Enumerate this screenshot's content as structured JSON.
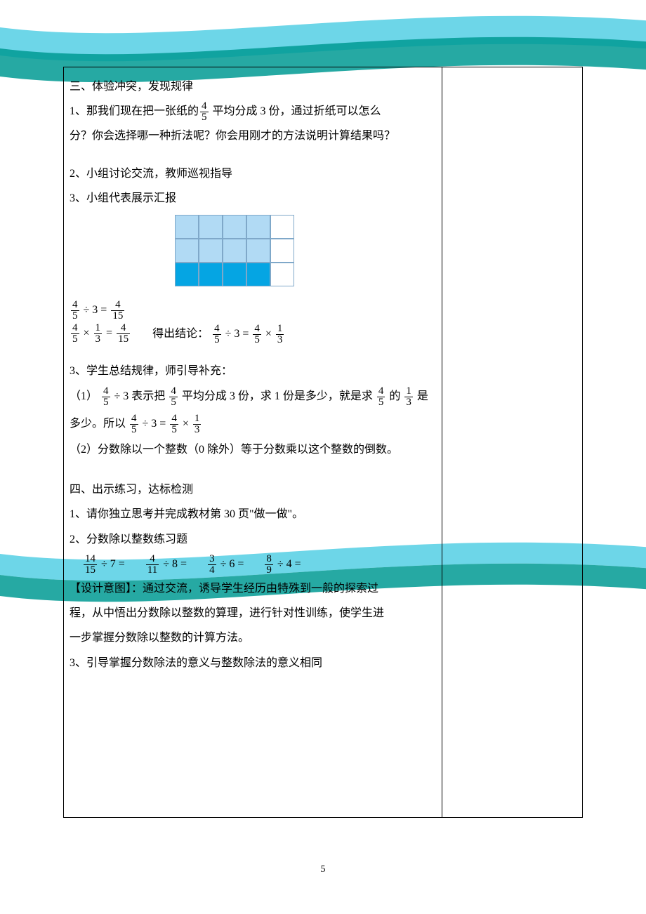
{
  "page_number": "5",
  "colors": {
    "swoosh_dark": "#009a93",
    "swoosh_light": "#5dd2e6",
    "grid_border": "#7fa8c9",
    "cell_light": "#b1daf4",
    "cell_dark": "#05a5e3",
    "cell_blank": "#ffffff"
  },
  "grid_diagram": {
    "rows": 3,
    "cols": 5,
    "fills": [
      [
        "b1daf4",
        "b1daf4",
        "b1daf4",
        "b1daf4",
        "ffffff"
      ],
      [
        "b1daf4",
        "b1daf4",
        "b1daf4",
        "b1daf4",
        "ffffff"
      ],
      [
        "05a5e3",
        "05a5e3",
        "05a5e3",
        "05a5e3",
        "ffffff"
      ]
    ]
  },
  "section3": {
    "heading": "三、体验冲突，发现规律",
    "p1_a": "1、那我们现在把一张纸的",
    "p1_frac_n": "4",
    "p1_frac_d": "5",
    "p1_b": " 平均分成 3 份，通过折纸可以怎么",
    "p1_c": "分？你会选择哪一种折法呢？你会用刚才的方法说明计算结果吗？",
    "p2": "2、小组讨论交流，教师巡视指导",
    "p3": "3、小组代表展示汇报",
    "eq1": {
      "a_n": "4",
      "a_d": "5",
      "op": "÷ 3 =",
      "r_n": "4",
      "r_d": "15"
    },
    "eq2": {
      "a_n": "4",
      "a_d": "5",
      "op": "×",
      "b_n": "1",
      "b_d": "3",
      "eq": "=",
      "r_n": "4",
      "r_d": "15"
    },
    "concl_label": "得出结论：",
    "eq3": {
      "a_n": "4",
      "a_d": "5",
      "op1": "÷ 3 =",
      "b_n": "4",
      "b_d": "5",
      "op2": "×",
      "c_n": "1",
      "c_d": "3"
    },
    "p4": "3、学生总结规律，师引导补充：",
    "rule1_a": "（1）",
    "rule1_f1_n": "4",
    "rule1_f1_d": "5",
    "rule1_b": "÷ 3 表示把",
    "rule1_f2_n": "4",
    "rule1_f2_d": "5",
    "rule1_c": "平均分成 3 份，求 1 份是多少，就是求",
    "rule1_f3_n": "4",
    "rule1_f3_d": "5",
    "rule1_d": "的",
    "rule1_f4_n": "1",
    "rule1_f4_d": "3",
    "rule1_e": "是多少。所以",
    "rule2": "（2）分数除以一个整数（0 除外）等于分数乘以这个整数的倒数。"
  },
  "section4": {
    "heading": "四、出示练习，达标检测",
    "p1": "1、请你独立思考并完成教材第 30 页\"做一做\"。",
    "p2": "2、分数除以整数练习题",
    "practice": [
      {
        "n": "14",
        "d": "15",
        "div": "÷ 7 ="
      },
      {
        "n": "4",
        "d": "11",
        "div": "÷ 8 ="
      },
      {
        "n": "3",
        "d": "4",
        "div": "÷ 6 ="
      },
      {
        "n": "8",
        "d": "9",
        "div": "÷ 4 ="
      }
    ],
    "design_a": "【设计意图】：通过交流，诱导学生经历由特殊到一般的探索过",
    "design_b": "程，从中悟出分数除以整数的算理，进行针对性训练，使学生进",
    "design_c": "一步掌握分数除以整数的计算方法。",
    "p3": "3、引导掌握分数除法的意义与整数除法的意义相同"
  }
}
